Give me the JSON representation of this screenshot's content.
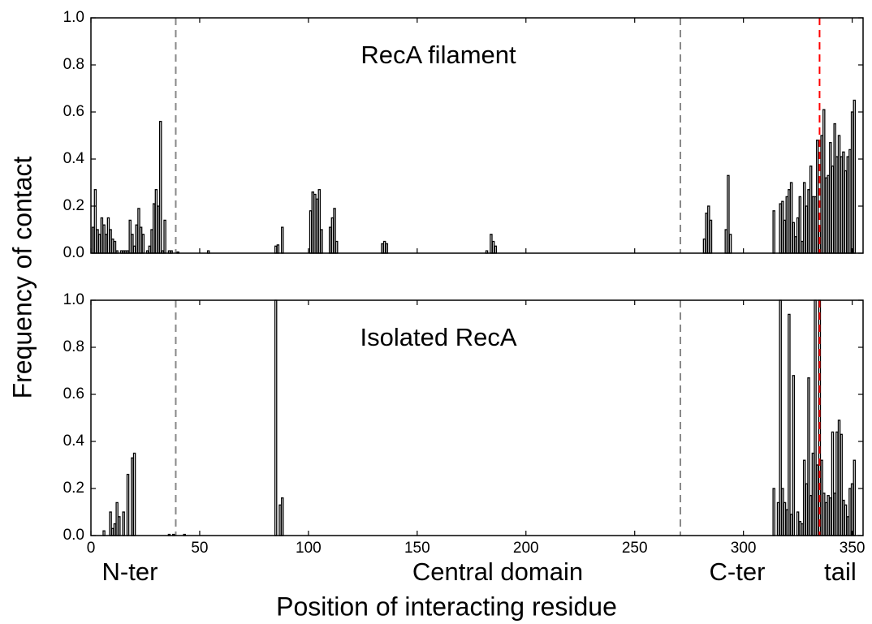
{
  "chart_data": [
    {
      "type": "bar",
      "title": "RecA filament",
      "y_label": "Frequency of contact",
      "color": "#000000",
      "xlim": [
        0,
        355
      ],
      "ylim": [
        0,
        1
      ],
      "xticks": [
        0,
        50,
        100,
        150,
        200,
        250,
        300,
        350
      ],
      "yticks": [
        {
          "value": 0,
          "label": "0.0"
        },
        {
          "value": 0.2,
          "label": "0.2"
        },
        {
          "value": 0.4,
          "label": "0.4"
        },
        {
          "value": 0.6,
          "label": "0.6"
        },
        {
          "value": 0.8,
          "label": "0.8"
        },
        {
          "value": 1,
          "label": "1.0"
        }
      ],
      "vlines": [
        {
          "value": 39,
          "color": "#888888"
        },
        {
          "value": 271,
          "color": "#888888"
        },
        {
          "value": 335,
          "color": "#ff0000"
        }
      ],
      "x": [
        1,
        2,
        3,
        4,
        5,
        6,
        7,
        8,
        9,
        10,
        11,
        12,
        14,
        15,
        16,
        17,
        18,
        19,
        20,
        21,
        22,
        23,
        24,
        26,
        27,
        28,
        29,
        30,
        31,
        32,
        33,
        34,
        36,
        37,
        40,
        54,
        85,
        86,
        88,
        101,
        102,
        103,
        104,
        105,
        106,
        110,
        111,
        112,
        113,
        134,
        135,
        136,
        182,
        184,
        185,
        186,
        282,
        283,
        284,
        285,
        292,
        293,
        294,
        314,
        317,
        318,
        319,
        320,
        321,
        322,
        323,
        324,
        325,
        326,
        327,
        328,
        329,
        330,
        331,
        332,
        333,
        334,
        335,
        336,
        337,
        338,
        339,
        340,
        341,
        342,
        343,
        344,
        345,
        346,
        347,
        348,
        349,
        350,
        351
      ],
      "values": [
        0.11,
        0.27,
        0.1,
        0.08,
        0.15,
        0.12,
        0.08,
        0.15,
        0.1,
        0.06,
        0.05,
        0.01,
        0.01,
        0.01,
        0.01,
        0.01,
        0.14,
        0.08,
        0.03,
        0.12,
        0.19,
        0.11,
        0.08,
        0.01,
        0.03,
        0.1,
        0.21,
        0.27,
        0.2,
        0.56,
        0.01,
        0.14,
        0.01,
        0.01,
        0.005,
        0.01,
        0.03,
        0.035,
        0.11,
        0.18,
        0.26,
        0.25,
        0.23,
        0.27,
        0.1,
        0.11,
        0.15,
        0.19,
        0.05,
        0.04,
        0.05,
        0.04,
        0.01,
        0.08,
        0.05,
        0.03,
        0.06,
        0.17,
        0.2,
        0.14,
        0.1,
        0.33,
        0.08,
        0.18,
        0.21,
        0.22,
        0.14,
        0.24,
        0.27,
        0.3,
        0.13,
        0.07,
        0.15,
        0.24,
        0.05,
        0.3,
        0.2,
        0.27,
        0.37,
        0.24,
        0.24,
        0.48,
        0.11,
        0.5,
        0.61,
        0.32,
        0.33,
        0.47,
        0.37,
        0.55,
        0.41,
        0.5,
        0.41,
        0.43,
        0.35,
        0.41,
        0.44,
        0.6,
        0.65
      ]
    },
    {
      "type": "bar",
      "title": "Isolated RecA",
      "x_label": "Position of interacting residue",
      "color": "#000000",
      "regions": [
        "N-ter",
        "Central domain",
        "C-ter",
        "tail"
      ],
      "xlim": [
        0,
        355
      ],
      "ylim": [
        0,
        1
      ],
      "xticks": [
        0,
        50,
        100,
        150,
        200,
        250,
        300,
        350
      ],
      "yticks": [
        {
          "value": 0,
          "label": "0.0"
        },
        {
          "value": 0.2,
          "label": "0.2"
        },
        {
          "value": 0.4,
          "label": "0.4"
        },
        {
          "value": 0.6,
          "label": "0.6"
        },
        {
          "value": 0.8,
          "label": "0.8"
        },
        {
          "value": 1,
          "label": "1.0"
        }
      ],
      "vlines": [
        {
          "value": 39,
          "color": "#888888"
        },
        {
          "value": 271,
          "color": "#888888"
        },
        {
          "value": 335,
          "color": "#ff0000"
        }
      ],
      "x": [
        6,
        9,
        10,
        11,
        12,
        13,
        15,
        17,
        19,
        20,
        36,
        38,
        43,
        85,
        87,
        88,
        314,
        316,
        317,
        318,
        319,
        320,
        321,
        322,
        323,
        325,
        326,
        327,
        328,
        329,
        330,
        331,
        332,
        333,
        334,
        335,
        336,
        337,
        338,
        339,
        340,
        341,
        342,
        343,
        344,
        345,
        346,
        347,
        348,
        349,
        350,
        351
      ],
      "values": [
        0.02,
        0.1,
        0.03,
        0.05,
        0.14,
        0.08,
        0.1,
        0.26,
        0.33,
        0.35,
        0.005,
        0.005,
        0.005,
        1,
        0.13,
        0.16,
        0.2,
        0.14,
        1,
        0.2,
        0.14,
        0.11,
        0.94,
        0.09,
        0.68,
        0.1,
        0.06,
        0.05,
        0.32,
        0.22,
        0.67,
        0.17,
        0.35,
        1,
        0.3,
        1,
        0.32,
        0.18,
        0.14,
        0.17,
        0.16,
        0.44,
        0.18,
        0.44,
        0.49,
        0.43,
        0.15,
        0.13,
        0.08,
        0.2,
        0.22,
        0.32
      ]
    }
  ]
}
